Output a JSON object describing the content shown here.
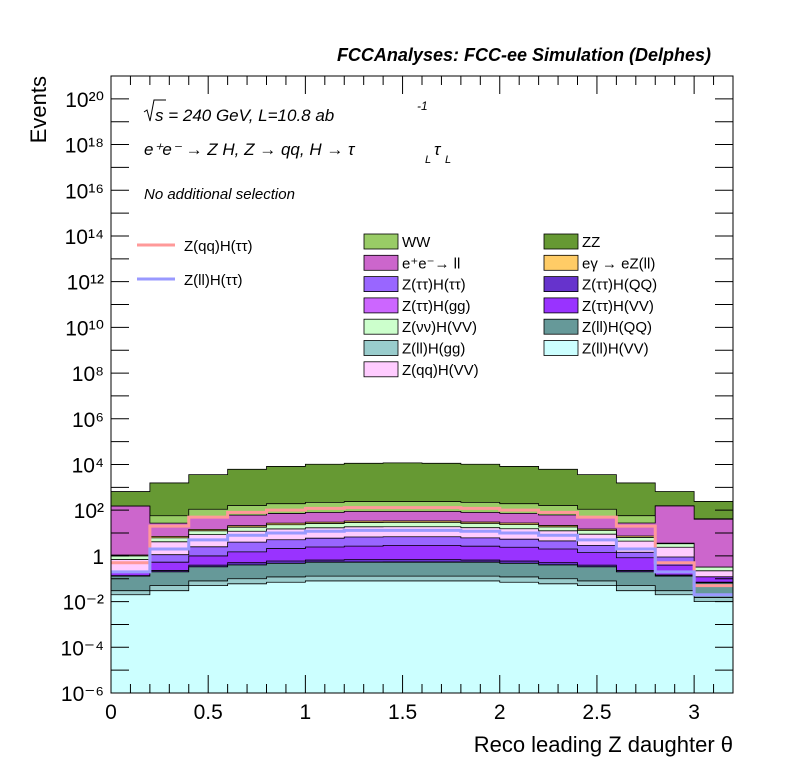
{
  "header": {
    "title": "FCCAnalyses: FCC-ee Simulation (Delphes)"
  },
  "annotations": {
    "sqrt_s": "s = 240 GeV, L=10.8 ab",
    "lumi_exp": "-1",
    "process": "e⁺e⁻ → Z H, Z → qq, H → τ",
    "tau_sub": "L",
    "tau2": "τ",
    "tau2_sub": "L",
    "selection": "No additional selection"
  },
  "colors": {
    "signal_qq": "#ff9999",
    "signal_ll": "#9999ff"
  },
  "chart_data": {
    "type": "area",
    "title": "FCCAnalyses: FCC-ee Simulation (Delphes)",
    "xlabel": "Reco leading Z daughter θ",
    "ylabel": "Events",
    "xlim": [
      0,
      3.2
    ],
    "ylim": [
      1e-06,
      1e+21
    ],
    "y_log": true,
    "x_ticks": [
      "0",
      "0.5",
      "1",
      "1.5",
      "2",
      "2.5",
      "3"
    ],
    "y_ticks": [
      "10⁻⁶",
      "10⁻⁴",
      "10⁻²",
      "1",
      "10²",
      "10⁴",
      "10⁶",
      "10⁸",
      "10¹⁰",
      "10¹²",
      "10¹⁴",
      "10¹⁶",
      "10¹⁸",
      "10²⁰"
    ],
    "bin_edges": [
      0,
      0.2,
      0.4,
      0.6,
      0.8,
      1.0,
      1.2,
      1.4,
      1.6,
      1.8,
      2.0,
      2.2,
      2.4,
      2.6,
      2.8,
      3.0,
      3.2
    ],
    "stack": [
      {
        "name": "Z(ll)H(VV)",
        "color": "#ccffff",
        "values": [
          0.02,
          0.03,
          0.05,
          0.06,
          0.07,
          0.08,
          0.08,
          0.08,
          0.08,
          0.08,
          0.07,
          0.06,
          0.05,
          0.03,
          0.02,
          0.01
        ]
      },
      {
        "name": "Z(ll)H(gg)",
        "color": "#99cccc",
        "values": [
          0.01,
          0.02,
          0.03,
          0.04,
          0.05,
          0.05,
          0.05,
          0.05,
          0.05,
          0.05,
          0.05,
          0.04,
          0.03,
          0.02,
          0.01,
          0.005
        ]
      },
      {
        "name": "Z(ll)H(QQ)",
        "color": "#669999",
        "values": [
          0.1,
          0.15,
          0.25,
          0.3,
          0.35,
          0.4,
          0.4,
          0.4,
          0.4,
          0.4,
          0.35,
          0.3,
          0.25,
          0.15,
          0.1,
          0.05
        ]
      },
      {
        "name": "Z(ττ)H(gg)",
        "color": "#cc66ff",
        "values": [
          1e-05,
          0.0006,
          0.004,
          0.004,
          0.006,
          0.006,
          0.004,
          0.006,
          0.006,
          0.006,
          0.004,
          0.006,
          0.004,
          0.001,
          1e-05,
          1e-05
        ]
      },
      {
        "name": "Z(ττ)H(QQ)",
        "color": "#6633cc",
        "values": [
          0.006,
          0.03,
          0.06,
          0.1,
          0.12,
          0.12,
          0.15,
          0.15,
          0.15,
          0.12,
          0.12,
          0.1,
          0.06,
          0.03,
          0.015,
          0.006
        ]
      },
      {
        "name": "Z(ττ)H(VV)",
        "color": "#9933ff",
        "values": [
          0.05,
          0.3,
          0.6,
          1.0,
          1.5,
          1.8,
          2.0,
          2.2,
          2.2,
          2.0,
          1.8,
          1.5,
          1.0,
          0.6,
          0.25,
          0.05
        ]
      },
      {
        "name": "Z(ττ)H(ττ)",
        "color": "#9966ff",
        "values": [
          0.003,
          0.6,
          1.5,
          2.5,
          3.0,
          3.5,
          4.0,
          4.0,
          4.0,
          3.5,
          3.0,
          2.5,
          1.5,
          0.6,
          0.5,
          0.001
        ]
      },
      {
        "name": "Z(qq)H(VV)",
        "color": "#ffccff",
        "values": [
          0.5,
          3,
          6,
          8,
          10,
          11,
          12,
          12,
          12,
          11,
          10,
          8,
          6,
          3,
          1.5,
          0.1
        ]
      },
      {
        "name": "Z(νν)H(VV)",
        "color": "#ccffcc",
        "values": [
          0.3,
          2,
          4,
          6,
          8,
          9,
          10,
          10,
          10,
          9,
          8,
          6,
          4,
          2,
          1,
          0.1
        ]
      },
      {
        "name": "eγ → eZ(ll)",
        "color": "#ffcc66",
        "values": [
          0.1,
          1,
          2,
          3,
          4,
          4,
          5,
          5,
          5,
          4,
          4,
          3,
          2,
          1,
          0.2,
          0.001
        ]
      },
      {
        "name": "e⁺e⁻→ ll",
        "color": "#cc66cc",
        "values": [
          150,
          20,
          35,
          40,
          45,
          50,
          55,
          55,
          55,
          50,
          45,
          40,
          35,
          20,
          150,
          40
        ]
      },
      {
        "name": "WW",
        "color": "#99cc66",
        "values": [
          1.5,
          30,
          60,
          100,
          120,
          140,
          150,
          150,
          150,
          140,
          120,
          100,
          60,
          30,
          3,
          1.5
        ]
      },
      {
        "name": "ZZ",
        "color": "#669933",
        "values": [
          500,
          1500,
          3500,
          6000,
          8000,
          10000,
          11000,
          11500,
          11000,
          10000,
          8000,
          6000,
          3500,
          1500,
          500,
          200
        ]
      }
    ],
    "signals": [
      {
        "name": "Z(qq)H(ττ)",
        "color": "#ff9999",
        "values": [
          0.5,
          20,
          50,
          80,
          100,
          120,
          130,
          130,
          130,
          120,
          100,
          80,
          50,
          20,
          0.5,
          0.05
        ]
      },
      {
        "name": "Z(ll)H(ττ)",
        "color": "#9999ff",
        "values": [
          0.2,
          2,
          5,
          8,
          10,
          12,
          13,
          13,
          13,
          12,
          10,
          8,
          5,
          2,
          0.2,
          0.02
        ]
      }
    ],
    "legend_order_left": [
      "WW",
      "e⁺e⁻→ ll",
      "Z(ττ)H(ττ)",
      "Z(ττ)H(gg)",
      "Z(νν)H(VV)",
      "Z(ll)H(gg)",
      "Z(qq)H(VV)"
    ],
    "legend_order_right": [
      "ZZ",
      "eγ → eZ(ll)",
      "Z(ττ)H(QQ)",
      "Z(ττ)H(VV)",
      "Z(ll)H(QQ)",
      "Z(ll)H(VV)"
    ],
    "grid": false,
    "legend_placement": "upper-center"
  }
}
